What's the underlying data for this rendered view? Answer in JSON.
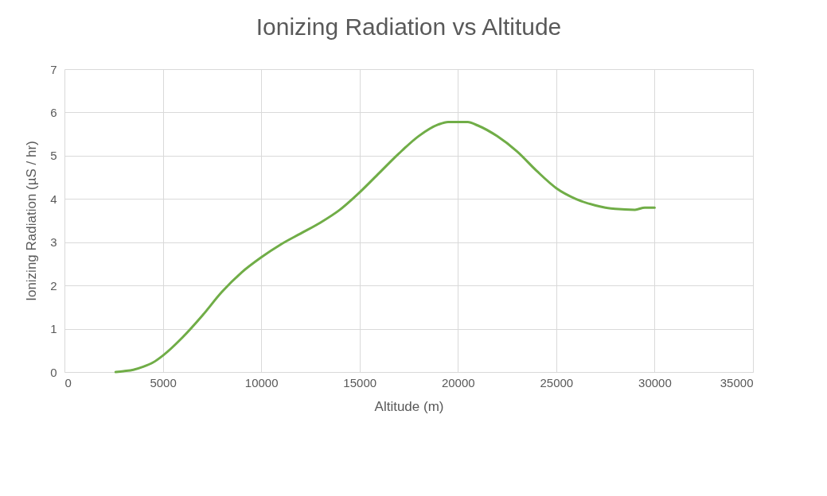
{
  "chart_data": {
    "type": "line",
    "title": "Ionizing Radiation vs Altitude",
    "xlabel": "Altitude (m)",
    "ylabel": "Ionizing Radiation (µS / hr)",
    "x": [
      2600,
      3000,
      3500,
      4000,
      4500,
      5000,
      6000,
      7000,
      8000,
      9000,
      10000,
      11000,
      12000,
      13000,
      14000,
      15000,
      16000,
      17000,
      18000,
      19000,
      19500,
      20500,
      21000,
      22000,
      23000,
      24000,
      25000,
      26000,
      27000,
      27500,
      28000,
      29000,
      29500,
      30000
    ],
    "series": [
      {
        "color": "#70ad47",
        "values": [
          0,
          0.02,
          0.05,
          0.12,
          0.22,
          0.38,
          0.8,
          1.3,
          1.85,
          2.3,
          2.65,
          2.95,
          3.2,
          3.45,
          3.75,
          4.15,
          4.6,
          5.05,
          5.45,
          5.72,
          5.78,
          5.78,
          5.7,
          5.45,
          5.1,
          4.65,
          4.25,
          4.0,
          3.85,
          3.8,
          3.77,
          3.75,
          3.8,
          3.8
        ]
      }
    ],
    "xlim": [
      0,
      35000
    ],
    "xticks": [
      0,
      5000,
      10000,
      15000,
      20000,
      25000,
      30000,
      35000
    ],
    "ylim": [
      0,
      7
    ],
    "yticks": [
      0,
      1,
      2,
      3,
      4,
      5,
      6,
      7
    ],
    "grid": true,
    "legend": false,
    "marker": "none",
    "line_style": "solid"
  }
}
